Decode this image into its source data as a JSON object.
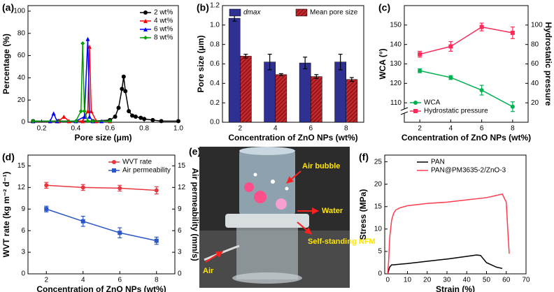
{
  "chart_data": [
    {
      "type": "line",
      "panel_label": "(a)",
      "xlabel": "Pore size (μm)",
      "ylabel": "Percentage (%)",
      "xlim": [
        0.12,
        1.0
      ],
      "xticks": [
        0.2,
        0.4,
        0.6,
        0.8,
        {
          "value": 1,
          "label": "1.0"
        }
      ],
      "ylim": [
        0,
        105
      ],
      "yticks": [
        0,
        20,
        40,
        60,
        80,
        100
      ],
      "legend": "upper right",
      "series": [
        {
          "name": "2 wt%",
          "color": "#000000",
          "marker": "circle",
          "x": [
            0.15,
            0.3,
            0.5,
            0.6,
            0.63,
            0.65,
            0.67,
            0.68,
            0.69,
            0.71,
            0.73,
            0.75,
            0.78,
            0.8,
            0.85,
            0.9,
            1.0
          ],
          "values": [
            1,
            1,
            1,
            2,
            5,
            13,
            30,
            41,
            28,
            10,
            6,
            5,
            4,
            3,
            2,
            1,
            1
          ]
        },
        {
          "name": "4 wt%",
          "color": "#ff0000",
          "marker": "triangle",
          "x": [
            0.15,
            0.3,
            0.33,
            0.36,
            0.44,
            0.47,
            0.48,
            0.49,
            0.52,
            0.6
          ],
          "values": [
            1,
            1,
            5,
            1,
            1,
            10,
            68,
            10,
            1,
            1
          ]
        },
        {
          "name": "6 wt%",
          "color": "#0000ff",
          "marker": "triangle",
          "x": [
            0.15,
            0.25,
            0.27,
            0.29,
            0.4,
            0.45,
            0.47,
            0.48,
            0.5,
            0.55
          ],
          "values": [
            1,
            1,
            8,
            1,
            1,
            5,
            75,
            5,
            1,
            1
          ]
        },
        {
          "name": "8 wt%",
          "color": "#00a000",
          "marker": "diamond",
          "x": [
            0.15,
            0.4,
            0.43,
            0.44,
            0.45,
            0.47,
            0.5,
            0.6
          ],
          "values": [
            1,
            1,
            10,
            71,
            10,
            1,
            1,
            1
          ]
        }
      ]
    },
    {
      "type": "bar",
      "panel_label": "(b)",
      "xlabel": "Concentration of ZnO NPs (wt%)",
      "ylabel": "Pore size (μm)",
      "categories": [
        "2",
        "4",
        "6",
        "8"
      ],
      "ylim": [
        0,
        1.2
      ],
      "yticks": [
        {
          "value": 0,
          "label": "0.0"
        },
        0.2,
        0.4,
        0.6,
        0.8,
        {
          "value": 1,
          "label": "1.0"
        },
        1.2
      ],
      "legend": "upper center",
      "series": [
        {
          "name": "dmax",
          "color": "#2e3192",
          "values": [
            1.07,
            0.62,
            0.61,
            0.62
          ],
          "errors": [
            0.03,
            0.08,
            0.06,
            0.08
          ]
        },
        {
          "name": "Mean pore size",
          "color": "#c0282d",
          "hatch": true,
          "values": [
            0.68,
            0.49,
            0.47,
            0.44
          ],
          "errors": [
            0.02,
            0.01,
            0.02,
            0.02
          ]
        }
      ]
    },
    {
      "type": "line",
      "panel_label": "(c)",
      "xlabel": "Concentration of ZnO NPs (wt%)",
      "ylabel": "WCA (°)",
      "y2label": "Hydrostatic pressure",
      "categories": [
        "2",
        "4",
        "6",
        "8"
      ],
      "ylim": [
        100,
        160
      ],
      "yticks": [
        110,
        120,
        130,
        140,
        150
      ],
      "y_axis_break": true,
      "y2lim": [
        0,
        120
      ],
      "y2ticks": [
        20,
        40,
        60,
        80,
        100
      ],
      "legend": "lower left",
      "series": [
        {
          "name": "WCA",
          "color": "#00b050",
          "marker": "circle",
          "values": [
            126.5,
            123,
            116.5,
            108
          ],
          "errors": [
            1,
            1,
            2.5,
            2.5
          ]
        },
        {
          "name": "Hydrostatic pressure",
          "color": "#ff2a5a",
          "marker": "square",
          "axis": "y2",
          "values": [
            70,
            78,
            98,
            92
          ],
          "errors": [
            3,
            5,
            4,
            6
          ]
        }
      ]
    },
    {
      "type": "line",
      "panel_label": "(d)",
      "xlabel": "Concentration of ZnO NPs (wt%)",
      "ylabel": "WVT rate (kg m⁻² d⁻¹)",
      "y2label": "Air permeability (mm/s)",
      "categories": [
        "2",
        "4",
        "6",
        "8"
      ],
      "ylim": [
        0,
        16.5
      ],
      "yticks": [
        0,
        3,
        6,
        9,
        12,
        15
      ],
      "y2lim": [
        0,
        16.5
      ],
      "y2ticks": [
        0,
        3,
        6,
        9,
        12,
        15
      ],
      "legend": "upper right",
      "series": [
        {
          "name": "WVT rate",
          "color": "#e8363f",
          "marker": "circle",
          "values": [
            12.3,
            12.0,
            11.9,
            11.6
          ],
          "errors": [
            0.4,
            0.4,
            0.4,
            0.5
          ]
        },
        {
          "name": "Air permeability",
          "color": "#2a56c6",
          "marker": "square",
          "axis": "y2",
          "values": [
            9.0,
            7.3,
            5.7,
            4.6
          ],
          "errors": [
            0.4,
            0.7,
            0.7,
            0.5
          ]
        }
      ]
    },
    {
      "type": "line",
      "panel_label": "(f)",
      "xlabel": "Strain (%)",
      "ylabel": "Stress (MPa)",
      "xlim": [
        -1.5,
        70
      ],
      "xticks": [
        0,
        10,
        20,
        30,
        40,
        50,
        60,
        70
      ],
      "ylim": [
        0,
        26.5
      ],
      "yticks": [
        0,
        5,
        10,
        15,
        20,
        25
      ],
      "legend": "upper center",
      "series": [
        {
          "name": "PAN",
          "color": "#000000",
          "x": [
            0,
            1,
            2,
            3,
            5,
            10,
            20,
            30,
            40,
            45,
            47,
            50,
            55,
            58
          ],
          "values": [
            0,
            1.5,
            2,
            2,
            2.1,
            2.3,
            2.8,
            3.3,
            3.9,
            4.2,
            4.1,
            2.5,
            1.5,
            1.2
          ]
        },
        {
          "name": "PAN@PM3635-2/ZnO-3",
          "color": "#ff3b4f",
          "x": [
            0,
            0.5,
            1,
            2,
            3,
            4,
            6,
            10,
            20,
            30,
            40,
            50,
            55,
            58,
            60,
            61,
            61.5
          ],
          "values": [
            0,
            3,
            8,
            12,
            13.5,
            14.2,
            14.7,
            15.2,
            15.7,
            16,
            16.5,
            17,
            17.5,
            17.8,
            16,
            8,
            4.5
          ]
        }
      ]
    }
  ],
  "image_panel": {
    "label": "(e)",
    "annotations": [
      "Air bubble",
      "Water",
      "Self-standing NFM",
      "Air"
    ]
  }
}
